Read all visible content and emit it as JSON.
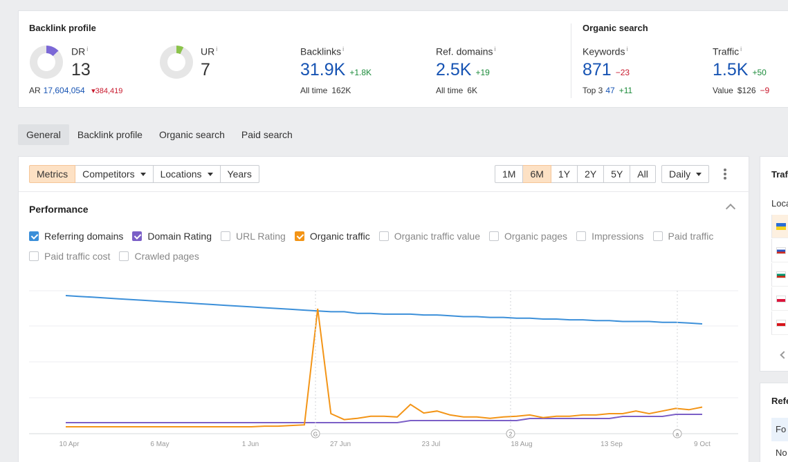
{
  "backlink_profile": {
    "title": "Backlink profile",
    "dr": {
      "label": "DR",
      "info": "i",
      "value": "13",
      "fraction": 0.13,
      "color": "#7b68d6"
    },
    "ur": {
      "label": "UR",
      "info": "i",
      "value": "7",
      "fraction": 0.07,
      "color": "#8bc34a"
    },
    "ar": {
      "label": "AR",
      "value": "17,604,054",
      "delta": "384,419"
    },
    "backlinks": {
      "label": "Backlinks",
      "info": "i",
      "value": "31.9K",
      "delta": "+1.8K",
      "sub_label": "All time",
      "sub_value": "162K"
    },
    "ref_domains": {
      "label": "Ref. domains",
      "info": "i",
      "value": "2.5K",
      "delta": "+19",
      "sub_label": "All time",
      "sub_value": "6K"
    }
  },
  "organic_search": {
    "title": "Organic search",
    "keywords": {
      "label": "Keywords",
      "info": "i",
      "value": "871",
      "delta": "−23",
      "sub_label": "Top 3",
      "sub_value": "47",
      "sub_delta": "+11"
    },
    "traffic": {
      "label": "Traffic",
      "info": "i",
      "value": "1.5K",
      "delta": "+50",
      "sub_label": "Value",
      "sub_value": "$126",
      "sub_delta": "−9"
    }
  },
  "tabs": [
    "General",
    "Backlink profile",
    "Organic search",
    "Paid search"
  ],
  "toolbar": {
    "left": [
      "Metrics",
      "Competitors",
      "Locations",
      "Years"
    ],
    "ranges": [
      "1M",
      "6M",
      "1Y",
      "2Y",
      "5Y",
      "All"
    ],
    "interval": "Daily"
  },
  "performance": {
    "title": "Performance",
    "checkboxes_row1": [
      {
        "label": "Referring domains",
        "checked": true,
        "color": "#3b8fd9"
      },
      {
        "label": "Domain Rating",
        "checked": true,
        "color": "#7b5fc7"
      },
      {
        "label": "URL Rating",
        "checked": false,
        "color": "#c4c7cc"
      },
      {
        "label": "Organic traffic",
        "checked": true,
        "color": "#f39416"
      },
      {
        "label": "Organic traffic value",
        "checked": false,
        "color": "#c4c7cc"
      },
      {
        "label": "Organic pages",
        "checked": false,
        "color": "#c4c7cc"
      },
      {
        "label": "Impressions",
        "checked": false,
        "color": "#c4c7cc"
      },
      {
        "label": "Paid traffic",
        "checked": false,
        "color": "#c4c7cc"
      }
    ],
    "checkboxes_row2": [
      {
        "label": "Paid traffic cost",
        "checked": false,
        "color": "#c4c7cc"
      },
      {
        "label": "Crawled pages",
        "checked": false,
        "color": "#c4c7cc"
      }
    ]
  },
  "chart_data": {
    "type": "line",
    "x_tick_labels": [
      "10 Apr",
      "6 May",
      "1 Jun",
      "27 Jun",
      "23 Jul",
      "18 Aug",
      "13 Sep",
      "9 Oct"
    ],
    "annotations": [
      "G",
      "2",
      "a"
    ],
    "series": [
      {
        "name": "Referring domains",
        "color": "#3b8fd9",
        "values": [
          100,
          99,
          98,
          97,
          96,
          95,
          94,
          93,
          92,
          91,
          90,
          89,
          88,
          87,
          86,
          85,
          84,
          83,
          82,
          81,
          80,
          80,
          78,
          78,
          77,
          77,
          77,
          76,
          76,
          75,
          74,
          74,
          73,
          73,
          72,
          72,
          71,
          71,
          70,
          70,
          69,
          69,
          68,
          68,
          68,
          67,
          67,
          66,
          65
        ]
      },
      {
        "name": "Domain Rating",
        "color": "#7b5fc7",
        "values": [
          13,
          13,
          13,
          13,
          13,
          13,
          13,
          13,
          13,
          13,
          13,
          13,
          13,
          13,
          13,
          13,
          13,
          13,
          13,
          13,
          13,
          13,
          13,
          13,
          13,
          13,
          14,
          14,
          14,
          14,
          14,
          14,
          14,
          14,
          14,
          15,
          15,
          15,
          15,
          15,
          15,
          15,
          16,
          16,
          16,
          16,
          17,
          17,
          17
        ]
      },
      {
        "name": "Organic traffic",
        "color": "#f39416",
        "values": [
          20,
          20,
          20,
          20,
          20,
          20,
          20,
          20,
          20,
          20,
          20,
          20,
          20,
          20,
          20,
          21,
          21,
          22,
          23,
          200,
          40,
          31,
          33,
          36,
          36,
          35,
          54,
          41,
          44,
          38,
          35,
          35,
          33,
          35,
          36,
          38,
          34,
          36,
          36,
          38,
          38,
          40,
          40,
          44,
          40,
          44,
          48,
          46,
          50
        ]
      }
    ]
  },
  "side_top": {
    "title": "Traf",
    "label": "Loca"
  },
  "side_bottom": {
    "title": "Refe",
    "rows": [
      "Fo",
      "No"
    ]
  }
}
